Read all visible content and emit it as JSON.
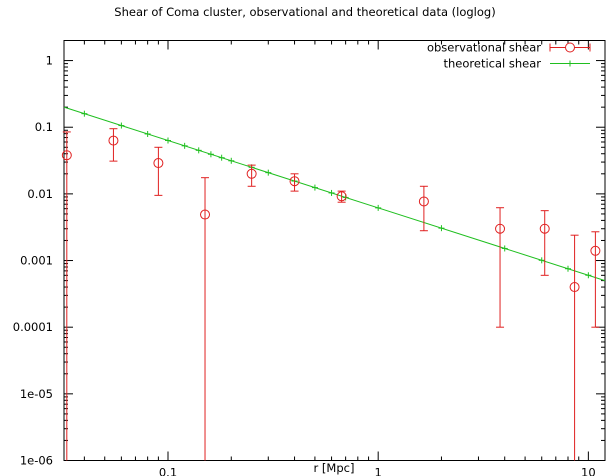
{
  "chart_data": {
    "type": "scatter",
    "title": "Shear of Coma cluster, observational and theoretical data (loglog)",
    "xlabel": "r [Mpc]",
    "ylabel": "",
    "x_scale": "log",
    "y_scale": "log",
    "xlim": [
      0.032,
      12
    ],
    "ylim": [
      1e-06,
      2
    ],
    "x_tick_values": [
      0.1,
      1,
      10
    ],
    "x_tick_labels": [
      "0.1",
      "1",
      "10"
    ],
    "y_tick_values": [
      1e-06,
      1e-05,
      0.0001,
      0.001,
      0.01,
      0.1,
      1
    ],
    "y_tick_labels": [
      "1e-06",
      "1e-05",
      "0.0001",
      "0.001",
      "0.01",
      "0.1",
      "1"
    ],
    "grid": false,
    "legend_position": "top-right",
    "series": [
      {
        "name": "observational shear",
        "style": "points-with-errorbars",
        "marker": "open-circle",
        "color": "#e02020",
        "points": [
          {
            "x": 0.033,
            "y": 0.038,
            "y_low": 1e-06,
            "y_high": 0.085
          },
          {
            "x": 0.055,
            "y": 0.063,
            "y_low": 0.031,
            "y_high": 0.095
          },
          {
            "x": 0.09,
            "y": 0.029,
            "y_low": 0.0095,
            "y_high": 0.05
          },
          {
            "x": 0.15,
            "y": 0.0049,
            "y_low": 1e-06,
            "y_high": 0.0175
          },
          {
            "x": 0.25,
            "y": 0.02,
            "y_low": 0.013,
            "y_high": 0.027
          },
          {
            "x": 0.4,
            "y": 0.0155,
            "y_low": 0.011,
            "y_high": 0.02
          },
          {
            "x": 0.67,
            "y": 0.0092,
            "y_low": 0.0075,
            "y_high": 0.011
          },
          {
            "x": 1.65,
            "y": 0.0077,
            "y_low": 0.0028,
            "y_high": 0.013
          },
          {
            "x": 3.8,
            "y": 0.003,
            "y_low": 0.0001,
            "y_high": 0.0062
          },
          {
            "x": 6.2,
            "y": 0.003,
            "y_low": 0.0006,
            "y_high": 0.0056
          },
          {
            "x": 8.6,
            "y": 0.0004,
            "y_low": 1e-06,
            "y_high": 0.0024
          },
          {
            "x": 10.8,
            "y": 0.0014,
            "y_low": 0.0001,
            "y_high": 0.0027
          }
        ]
      },
      {
        "name": "theoretical shear",
        "style": "line-with-points",
        "marker": "plus",
        "color": "#1fbf1f",
        "line_endpoints": [
          {
            "x": 0.032,
            "y": 0.2
          },
          {
            "x": 12,
            "y": 0.0005
          }
        ],
        "marker_x": [
          0.04,
          0.06,
          0.08,
          0.1,
          0.12,
          0.14,
          0.16,
          0.18,
          0.2,
          0.25,
          0.3,
          0.4,
          0.5,
          0.6,
          0.7,
          1,
          2,
          4,
          6,
          8,
          10
        ]
      }
    ]
  }
}
